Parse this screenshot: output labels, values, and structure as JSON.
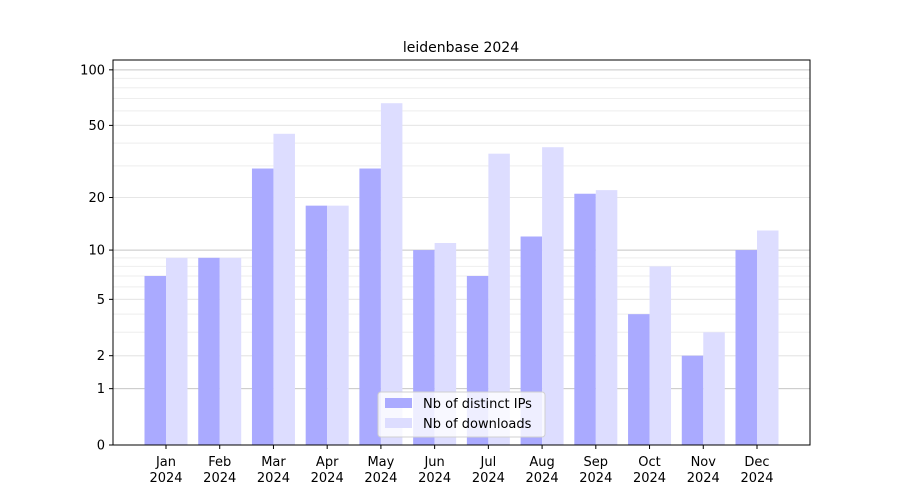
{
  "chart_data": {
    "type": "bar",
    "title": "leidenbase 2024",
    "xlabel": "",
    "ylabel": "",
    "yscale": "log(1+y)",
    "ylim": [
      0,
      113
    ],
    "yticks": [
      0,
      1,
      2,
      5,
      10,
      20,
      50,
      100
    ],
    "ytick_labels": [
      "0",
      "1",
      "2",
      "5",
      "10",
      "20",
      "50",
      "100"
    ],
    "grid": true,
    "legend_position": "bottom-center",
    "categories": [
      [
        "Jan",
        "2024"
      ],
      [
        "Feb",
        "2024"
      ],
      [
        "Mar",
        "2024"
      ],
      [
        "Apr",
        "2024"
      ],
      [
        "May",
        "2024"
      ],
      [
        "Jun",
        "2024"
      ],
      [
        "Jul",
        "2024"
      ],
      [
        "Aug",
        "2024"
      ],
      [
        "Sep",
        "2024"
      ],
      [
        "Oct",
        "2024"
      ],
      [
        "Nov",
        "2024"
      ],
      [
        "Dec",
        "2024"
      ]
    ],
    "series": [
      {
        "name": "Nb of distinct IPs",
        "color": "#aaaaff",
        "values": [
          7,
          9,
          29,
          18,
          29,
          10,
          7,
          12,
          21,
          4,
          2,
          10
        ]
      },
      {
        "name": "Nb of downloads",
        "color": "#ddddff",
        "values": [
          9,
          9,
          45,
          18,
          66,
          11,
          35,
          38,
          22,
          8,
          3,
          13
        ]
      }
    ]
  }
}
